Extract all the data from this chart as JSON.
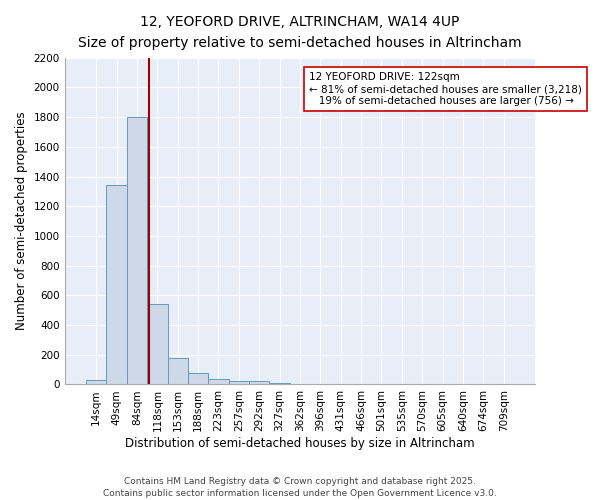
{
  "title": "12, YEOFORD DRIVE, ALTRINCHAM, WA14 4UP",
  "subtitle": "Size of property relative to semi-detached houses in Altrincham",
  "xlabel": "Distribution of semi-detached houses by size in Altrincham",
  "ylabel": "Number of semi-detached properties",
  "bar_color": "#cdd8e8",
  "bar_edge_color": "#6699bb",
  "bg_color": "#e8eef8",
  "grid_color": "#ffffff",
  "categories": [
    "14sqm",
    "49sqm",
    "84sqm",
    "118sqm",
    "153sqm",
    "188sqm",
    "223sqm",
    "257sqm",
    "292sqm",
    "327sqm",
    "362sqm",
    "396sqm",
    "431sqm",
    "466sqm",
    "501sqm",
    "535sqm",
    "570sqm",
    "605sqm",
    "640sqm",
    "674sqm",
    "709sqm"
  ],
  "values": [
    30,
    1340,
    1800,
    540,
    180,
    80,
    35,
    25,
    20,
    10,
    0,
    0,
    0,
    0,
    0,
    0,
    0,
    0,
    0,
    0,
    0
  ],
  "ylim": [
    0,
    2200
  ],
  "yticks": [
    0,
    200,
    400,
    600,
    800,
    1000,
    1200,
    1400,
    1600,
    1800,
    2000,
    2200
  ],
  "property_line_color": "#990000",
  "annotation_line1": "12 YEOFORD DRIVE: 122sqm",
  "annotation_line2": "← 81% of semi-detached houses are smaller (3,218)",
  "annotation_line3": "   19% of semi-detached houses are larger (756) →",
  "footnote": "Contains HM Land Registry data © Crown copyright and database right 2025.\nContains public sector information licensed under the Open Government Licence v3.0.",
  "title_fontsize": 10,
  "subtitle_fontsize": 9,
  "axis_label_fontsize": 8.5,
  "tick_fontsize": 7.5,
  "annotation_fontsize": 7.5,
  "footnote_fontsize": 6.5
}
